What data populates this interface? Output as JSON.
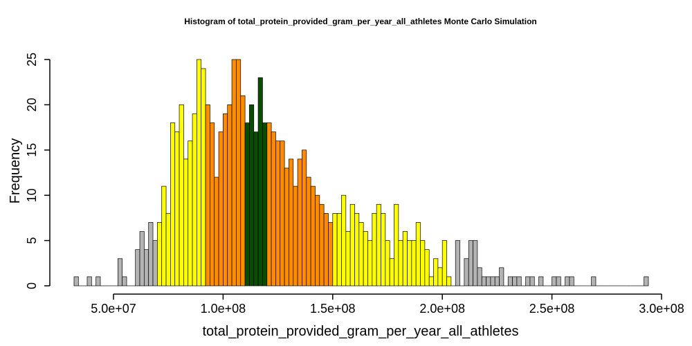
{
  "chart_data": {
    "type": "bar",
    "title": "Histogram of  total_protein_provided_gram_per_year_all_athletes  Monte Carlo Simulation",
    "xlabel": "total_protein_provided_gram_per_year_all_athletes",
    "ylabel": "Frequency",
    "xlim": [
      32000000,
      294000000
    ],
    "ylim": [
      0,
      26
    ],
    "bin_width": 2000000,
    "x_ticks": [
      {
        "value": 50000000,
        "label": "5.0e+07"
      },
      {
        "value": 100000000,
        "label": "1.0e+08"
      },
      {
        "value": 150000000,
        "label": "1.5e+08"
      },
      {
        "value": 200000000,
        "label": "2.0e+08"
      },
      {
        "value": 250000000,
        "label": "2.5e+08"
      },
      {
        "value": 300000000,
        "label": "3.0e+08"
      }
    ],
    "y_ticks": [
      {
        "value": 0,
        "label": "0"
      },
      {
        "value": 5,
        "label": "5"
      },
      {
        "value": 10,
        "label": "10"
      },
      {
        "value": 15,
        "label": "15"
      },
      {
        "value": 20,
        "label": "20"
      },
      {
        "value": 25,
        "label": "25"
      }
    ],
    "color_bands": [
      {
        "from": 0,
        "to": 70000000,
        "color": "#b3b3b3"
      },
      {
        "from": 70000000,
        "to": 92000000,
        "color": "#ffff00"
      },
      {
        "from": 92000000,
        "to": 110000000,
        "color": "#ff8c00"
      },
      {
        "from": 110000000,
        "to": 120000000,
        "color": "#0a4d00"
      },
      {
        "from": 120000000,
        "to": 150000000,
        "color": "#ff8c00"
      },
      {
        "from": 150000000,
        "to": 204000000,
        "color": "#ffff00"
      },
      {
        "from": 204000000,
        "to": 300000000,
        "color": "#b3b3b3"
      }
    ],
    "bins_start": [
      32000000,
      34000000,
      36000000,
      38000000,
      40000000,
      42000000,
      44000000,
      46000000,
      48000000,
      50000000,
      52000000,
      54000000,
      56000000,
      58000000,
      60000000,
      62000000,
      64000000,
      66000000,
      68000000,
      70000000,
      72000000,
      74000000,
      76000000,
      78000000,
      80000000,
      82000000,
      84000000,
      86000000,
      88000000,
      90000000,
      92000000,
      94000000,
      96000000,
      98000000,
      100000000,
      102000000,
      104000000,
      106000000,
      108000000,
      110000000,
      112000000,
      114000000,
      116000000,
      118000000,
      120000000,
      122000000,
      124000000,
      126000000,
      128000000,
      130000000,
      132000000,
      134000000,
      136000000,
      138000000,
      140000000,
      142000000,
      144000000,
      146000000,
      148000000,
      150000000,
      152000000,
      154000000,
      156000000,
      158000000,
      160000000,
      162000000,
      164000000,
      166000000,
      168000000,
      170000000,
      172000000,
      174000000,
      176000000,
      178000000,
      180000000,
      182000000,
      184000000,
      186000000,
      188000000,
      190000000,
      192000000,
      194000000,
      196000000,
      198000000,
      200000000,
      202000000,
      204000000,
      206000000,
      208000000,
      210000000,
      212000000,
      214000000,
      216000000,
      218000000,
      220000000,
      222000000,
      224000000,
      226000000,
      228000000,
      230000000,
      232000000,
      234000000,
      236000000,
      238000000,
      240000000,
      242000000,
      244000000,
      246000000,
      248000000,
      250000000,
      252000000,
      254000000,
      256000000,
      258000000,
      260000000,
      262000000,
      264000000,
      266000000,
      268000000,
      270000000,
      272000000,
      274000000,
      276000000,
      278000000,
      280000000,
      282000000,
      284000000,
      286000000,
      288000000,
      290000000,
      292000000
    ],
    "counts": [
      1,
      0,
      0,
      1,
      0,
      1,
      0,
      0,
      0,
      0,
      3,
      1,
      0,
      0,
      4,
      6,
      4,
      7,
      5,
      7,
      11,
      8,
      18,
      17,
      20,
      14,
      16,
      19,
      25,
      24,
      20,
      18,
      12,
      17,
      19,
      20,
      25,
      25,
      21,
      18,
      20,
      17,
      23,
      18,
      18,
      17,
      16,
      16,
      13,
      14,
      11,
      14,
      15,
      12,
      11,
      10,
      9,
      8,
      7,
      8,
      8,
      10,
      6,
      9,
      8,
      7,
      6,
      5,
      8,
      9,
      8,
      5,
      3,
      9,
      5,
      6,
      5,
      5,
      7,
      5,
      4,
      1,
      3,
      2,
      5,
      1,
      0,
      5,
      0,
      3,
      5,
      5,
      2,
      1,
      1,
      1,
      1,
      2,
      0,
      1,
      1,
      1,
      0,
      1,
      1,
      0,
      1,
      0,
      0,
      1,
      1,
      0,
      1,
      1,
      0,
      0,
      0,
      0,
      1,
      0,
      0,
      0,
      0,
      0,
      0,
      0,
      0,
      0,
      0,
      0,
      1
    ]
  }
}
